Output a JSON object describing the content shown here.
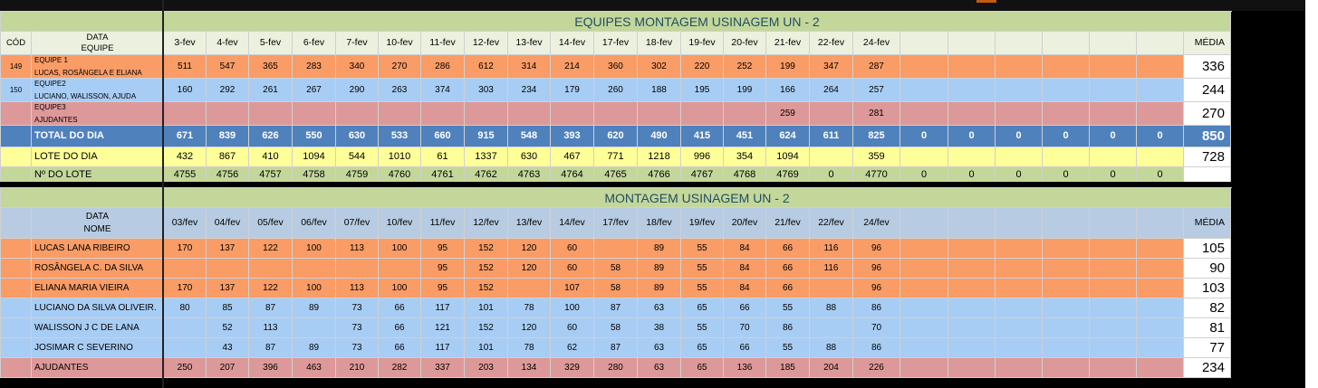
{
  "colors": {
    "orange": "#fa9c66",
    "blue": "#a8cdf5",
    "pink": "#dd9999",
    "total": "#4f81bd",
    "lote": "#ffff99",
    "green": "#c4d79b",
    "header": "#ebf1de"
  },
  "top": {
    "title": "EQUIPES MONTAGEM USINAGEM UN - 2",
    "cod_header": "CÓD",
    "data_header": "DATA",
    "equipe_header": "EQUIPE",
    "media_header": "MÉDIA",
    "dates": [
      "3-fev",
      "4-fev",
      "5-fev",
      "6-fev",
      "7-fev",
      "10-fev",
      "11-fev",
      "12-fev",
      "13-fev",
      "14-fev",
      "17-fev",
      "18-fev",
      "19-fev",
      "20-fev",
      "21-fev",
      "22-fev",
      "24-fev",
      "",
      "",
      "",
      "",
      "",
      "",
      ""
    ],
    "rows": [
      {
        "code": "149",
        "line1": "EQUIPE 1",
        "line2": "LUCAS, ROSÂNGELA E ELIANA",
        "color": "orange",
        "values": [
          "511",
          "547",
          "365",
          "283",
          "340",
          "270",
          "286",
          "612",
          "314",
          "214",
          "360",
          "302",
          "220",
          "252",
          "199",
          "347",
          "287",
          "",
          "",
          "",
          "",
          "",
          "",
          ""
        ],
        "media": "336"
      },
      {
        "code": "150",
        "line1": "EQUIPE2",
        "line2": "LUCIANO, WALISSON, AJUDA",
        "color": "blue",
        "values": [
          "160",
          "292",
          "261",
          "267",
          "290",
          "263",
          "374",
          "303",
          "234",
          "179",
          "260",
          "188",
          "195",
          "199",
          "166",
          "264",
          "257",
          "",
          "",
          "",
          "",
          "",
          "",
          ""
        ],
        "media": "244"
      },
      {
        "code": "",
        "line1": "EQUIPE3",
        "line2": "AJUDANTES",
        "color": "pink",
        "values": [
          "",
          "",
          "",
          "",
          "",
          "",
          "",
          "",
          "",
          "",
          "",
          "",
          "",
          "",
          "259",
          "",
          "281",
          "",
          "",
          "",
          "",
          "",
          "",
          ""
        ],
        "media": "270"
      }
    ],
    "total": {
      "label": "TOTAL DO DIA",
      "values": [
        "671",
        "839",
        "626",
        "550",
        "630",
        "533",
        "660",
        "915",
        "548",
        "393",
        "620",
        "490",
        "415",
        "451",
        "624",
        "611",
        "825",
        "0",
        "0",
        "0",
        "0",
        "0",
        "0",
        ""
      ],
      "media": "850"
    },
    "lote": {
      "label": "LOTE DO DIA",
      "values": [
        "432",
        "867",
        "410",
        "1094",
        "544",
        "1010",
        "61",
        "1337",
        "630",
        "467",
        "771",
        "1218",
        "996",
        "354",
        "1094",
        "",
        "359",
        "",
        "",
        "",
        "",
        "",
        "",
        ""
      ],
      "media": "728"
    },
    "nlote": {
      "label": "Nº DO LOTE",
      "values": [
        "4755",
        "4756",
        "4757",
        "4758",
        "4759",
        "4760",
        "4761",
        "4762",
        "4763",
        "4764",
        "4765",
        "4766",
        "4767",
        "4768",
        "4769",
        "0",
        "4770",
        "0",
        "0",
        "0",
        "0",
        "0",
        "0",
        ""
      ],
      "media": ""
    }
  },
  "bottom": {
    "title": "MONTAGEM USINAGEM UN - 2",
    "data_header": "DATA",
    "nome_header": "NOME",
    "media_header": "MÉDIA",
    "dates": [
      "03/fev",
      "04/fev",
      "05/fev",
      "06/fev",
      "07/fev",
      "10/fev",
      "11/fev",
      "12/fev",
      "13/fev",
      "14/fev",
      "17/fev",
      "18/fev",
      "19/fev",
      "20/fev",
      "21/fev",
      "22/fev",
      "24/fev",
      "",
      "",
      "",
      "",
      "",
      "",
      ""
    ],
    "rows": [
      {
        "name": "LUCAS LANA RIBEIRO",
        "color": "orange",
        "values": [
          "170",
          "137",
          "122",
          "100",
          "113",
          "100",
          "95",
          "152",
          "120",
          "60",
          "",
          "89",
          "55",
          "84",
          "66",
          "116",
          "96",
          "",
          "",
          "",
          "",
          "",
          "",
          ""
        ],
        "media": "105"
      },
      {
        "name": "ROSÂNGELA C. DA SILVA",
        "color": "orange",
        "values": [
          "",
          "",
          "",
          "",
          "",
          "",
          "95",
          "152",
          "120",
          "60",
          "58",
          "89",
          "55",
          "84",
          "66",
          "116",
          "96",
          "",
          "",
          "",
          "",
          "",
          "",
          ""
        ],
        "media": "90"
      },
      {
        "name": "ELIANA MARIA VIEIRA",
        "color": "orange",
        "values": [
          "170",
          "137",
          "122",
          "100",
          "113",
          "100",
          "95",
          "152",
          "",
          "107",
          "58",
          "89",
          "55",
          "84",
          "66",
          "",
          "96",
          "",
          "",
          "",
          "",
          "",
          "",
          ""
        ],
        "media": "103"
      },
      {
        "name": "LUCIANO DA SILVA OLIVEIR.",
        "color": "blue",
        "values": [
          "80",
          "85",
          "87",
          "89",
          "73",
          "66",
          "117",
          "101",
          "78",
          "100",
          "87",
          "63",
          "65",
          "66",
          "55",
          "88",
          "86",
          "",
          "",
          "",
          "",
          "",
          "",
          ""
        ],
        "media": "82"
      },
      {
        "name": "WALISSON J C DE LANA",
        "color": "blue",
        "values": [
          "",
          "52",
          "113",
          "",
          "73",
          "66",
          "121",
          "152",
          "120",
          "60",
          "58",
          "38",
          "55",
          "70",
          "86",
          "",
          "70",
          "",
          "",
          "",
          "",
          "",
          "",
          ""
        ],
        "media": "81"
      },
      {
        "name": "JOSIMAR C SEVERINO",
        "color": "blue",
        "values": [
          "",
          "43",
          "87",
          "89",
          "73",
          "66",
          "117",
          "101",
          "78",
          "62",
          "87",
          "63",
          "65",
          "66",
          "55",
          "88",
          "86",
          "",
          "",
          "",
          "",
          "",
          "",
          ""
        ],
        "media": "77"
      },
      {
        "name": "AJUDANTES",
        "color": "pink",
        "values": [
          "250",
          "207",
          "396",
          "463",
          "210",
          "282",
          "337",
          "203",
          "134",
          "329",
          "280",
          "63",
          "65",
          "136",
          "185",
          "204",
          "226",
          "",
          "",
          "",
          "",
          "",
          "",
          ""
        ],
        "media": "234"
      }
    ]
  }
}
